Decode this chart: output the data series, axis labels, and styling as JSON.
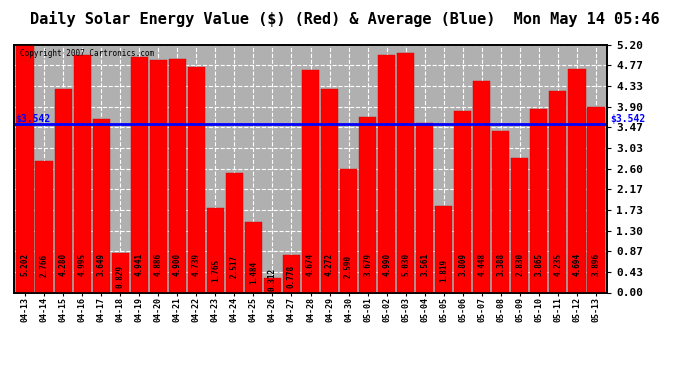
{
  "title": "Daily Solar Energy Value ($) (Red) & Average (Blue)  Mon May 14 05:46",
  "copyright": "Copyright 2007 Cartronics.com",
  "categories": [
    "04-13",
    "04-14",
    "04-15",
    "04-16",
    "04-17",
    "04-18",
    "04-19",
    "04-20",
    "04-21",
    "04-22",
    "04-23",
    "04-24",
    "04-25",
    "04-26",
    "04-27",
    "04-28",
    "04-29",
    "04-30",
    "05-01",
    "05-02",
    "05-03",
    "05-04",
    "05-05",
    "05-06",
    "05-07",
    "05-08",
    "05-09",
    "05-10",
    "05-11",
    "05-12",
    "05-13"
  ],
  "values": [
    5.202,
    2.766,
    4.28,
    4.995,
    3.649,
    0.829,
    4.941,
    4.886,
    4.9,
    4.739,
    1.765,
    2.517,
    1.484,
    0.312,
    0.778,
    4.674,
    4.272,
    2.59,
    3.679,
    4.99,
    5.03,
    3.561,
    1.819,
    3.809,
    4.448,
    3.388,
    2.83,
    3.865,
    4.235,
    4.694,
    3.896
  ],
  "average": 3.542,
  "bar_color": "#ff0000",
  "avg_line_color": "#0000ff",
  "bg_color": "#ffffff",
  "plot_bg_color": "#b0b0b0",
  "yticks": [
    0.0,
    0.43,
    0.87,
    1.3,
    1.73,
    2.17,
    2.6,
    3.03,
    3.47,
    3.9,
    4.33,
    4.77,
    5.2
  ],
  "ylim": [
    0.0,
    5.2
  ],
  "title_fontsize": 11,
  "label_fontsize": 5.5,
  "tick_fontsize": 7,
  "avg_label_left": "$3.542",
  "avg_label_right": "$3.542"
}
